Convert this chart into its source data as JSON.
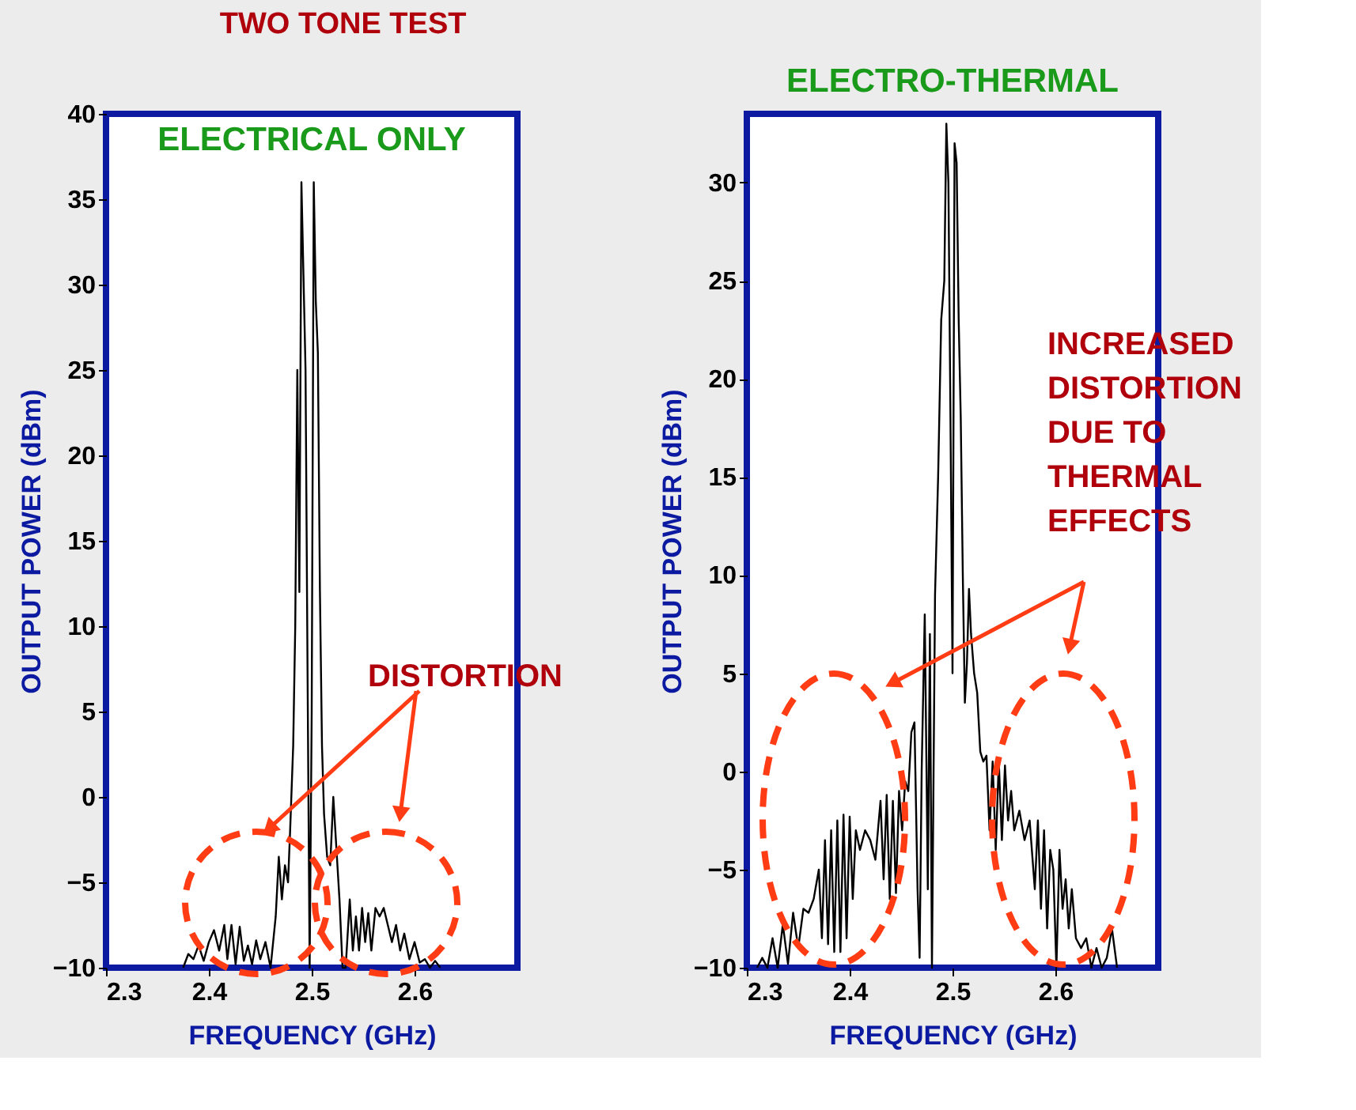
{
  "chart_data": [
    {
      "type": "line",
      "title": "ELECTRICAL ONLY",
      "xlabel": "FREQUENCY (GHz)",
      "ylabel": "OUTPUT POWER (dBm)",
      "xlim": [
        2.3,
        2.7
      ],
      "ylim": [
        -10,
        40
      ],
      "xticks": [
        2.3,
        2.4,
        2.5,
        2.6
      ],
      "yticks": [
        -10,
        -5,
        0,
        5,
        10,
        15,
        20,
        25,
        30,
        35,
        40
      ],
      "grid": false,
      "marker": "none",
      "line_style": "solid",
      "annotations": [
        "TWO TONE TEST",
        "DISTORTION"
      ],
      "series": [
        {
          "color": "#000000",
          "x": [
            2.375,
            2.38,
            2.385,
            2.39,
            2.395,
            2.4,
            2.405,
            2.41,
            2.415,
            2.418,
            2.422,
            2.426,
            2.43,
            2.434,
            2.438,
            2.442,
            2.446,
            2.45,
            2.455,
            2.46,
            2.465,
            2.468,
            2.471,
            2.474,
            2.477,
            2.479,
            2.482,
            2.484,
            2.486,
            2.488,
            2.49,
            2.492,
            2.494,
            2.496,
            2.498,
            2.5,
            2.502,
            2.504,
            2.506,
            2.508,
            2.51,
            2.512,
            2.515,
            2.518,
            2.521,
            2.524,
            2.527,
            2.53,
            2.533,
            2.537,
            2.54,
            2.543,
            2.546,
            2.549,
            2.552,
            2.555,
            2.558,
            2.562,
            2.566,
            2.57,
            2.574,
            2.578,
            2.582,
            2.586,
            2.59,
            2.595,
            2.6,
            2.605,
            2.61,
            2.615,
            2.62,
            2.625
          ],
          "values": [
            -10,
            -9.2,
            -9.5,
            -8.7,
            -9.6,
            -8.5,
            -7.8,
            -9,
            -7.5,
            -9.5,
            -7.5,
            -9.8,
            -7.6,
            -9.6,
            -8.7,
            -9.8,
            -8.4,
            -9.5,
            -8.5,
            -10,
            -7,
            -3.5,
            -6,
            -4,
            -5,
            -2,
            3,
            10,
            25,
            12,
            36,
            30.5,
            25,
            7,
            -10,
            5,
            36,
            29,
            26,
            12,
            3,
            -1,
            -3.5,
            -4,
            0,
            -3,
            -6,
            -10,
            -10,
            -6,
            -9,
            -7,
            -9,
            -6.5,
            -8.5,
            -6.8,
            -9,
            -6.5,
            -7,
            -6.5,
            -7.5,
            -8.5,
            -7.5,
            -9,
            -8,
            -9.5,
            -8.5,
            -9.7,
            -9.5,
            -10,
            -9.6,
            -10
          ]
        }
      ]
    },
    {
      "type": "line",
      "title": "ELECTRO-THERMAL",
      "xlabel": "FREQUENCY (GHz)",
      "ylabel": "OUTPUT POWER (dBm)",
      "xlim": [
        2.3,
        2.7
      ],
      "ylim": [
        -10,
        33.5
      ],
      "xticks": [
        2.3,
        2.4,
        2.5,
        2.6
      ],
      "yticks": [
        -10,
        -5,
        0,
        5,
        10,
        15,
        20,
        25,
        30
      ],
      "grid": false,
      "marker": "none",
      "line_style": "solid",
      "annotations": [
        "INCREASED DISTORTION DUE TO THERMAL EFFECTS"
      ],
      "series": [
        {
          "color": "#000000",
          "x": [
            2.31,
            2.315,
            2.32,
            2.325,
            2.33,
            2.335,
            2.34,
            2.345,
            2.35,
            2.355,
            2.36,
            2.365,
            2.37,
            2.373,
            2.376,
            2.379,
            2.382,
            2.385,
            2.388,
            2.391,
            2.394,
            2.397,
            2.4,
            2.403,
            2.406,
            2.41,
            2.415,
            2.42,
            2.425,
            2.43,
            2.433,
            2.436,
            2.439,
            2.442,
            2.445,
            2.448,
            2.451,
            2.454,
            2.457,
            2.46,
            2.463,
            2.466,
            2.468,
            2.47,
            2.473,
            2.476,
            2.478,
            2.48,
            2.483,
            2.486,
            2.489,
            2.492,
            2.494,
            2.496,
            2.498,
            2.5,
            2.502,
            2.504,
            2.506,
            2.508,
            2.51,
            2.512,
            2.514,
            2.516,
            2.518,
            2.521,
            2.524,
            2.527,
            2.53,
            2.533,
            2.536,
            2.539,
            2.542,
            2.545,
            2.548,
            2.551,
            2.554,
            2.557,
            2.56,
            2.565,
            2.57,
            2.575,
            2.58,
            2.583,
            2.586,
            2.589,
            2.592,
            2.595,
            2.598,
            2.601,
            2.604,
            2.607,
            2.61,
            2.613,
            2.616,
            2.62,
            2.625,
            2.63,
            2.635,
            2.64,
            2.645,
            2.65,
            2.655,
            2.66
          ],
          "values": [
            -10,
            -9.5,
            -10,
            -8.5,
            -10,
            -7.8,
            -9.8,
            -7.2,
            -9,
            -7,
            -7.2,
            -6.5,
            -5,
            -8.5,
            -3.5,
            -8.8,
            -3,
            -9.2,
            -2.5,
            -9.2,
            -2.2,
            -8.5,
            -2.3,
            -6.5,
            -3,
            -4,
            -3,
            -3.5,
            -4.5,
            -1.5,
            -5.5,
            -1.2,
            -6.5,
            -1.5,
            -6.2,
            -1,
            -3,
            -0.5,
            -1,
            2,
            2.5,
            -6,
            -9.5,
            0,
            8,
            -6,
            7,
            -10,
            9,
            15,
            23,
            25,
            33,
            30,
            18,
            5,
            32,
            31,
            23,
            18,
            10,
            3.5,
            5.5,
            9.3,
            7,
            5,
            4,
            1,
            0.5,
            0.8,
            -3,
            0.5,
            -4,
            0.5,
            -3.5,
            0.3,
            -2.5,
            -1,
            -3,
            -2,
            -3.5,
            -2.5,
            -6,
            -2.5,
            -7,
            -3,
            -8,
            -4,
            -5,
            -10,
            -4,
            -7,
            -5.5,
            -8,
            -6,
            -8.5,
            -9,
            -8.5,
            -10,
            -9,
            -10,
            -9.5,
            -8,
            -10
          ]
        }
      ]
    }
  ]
}
